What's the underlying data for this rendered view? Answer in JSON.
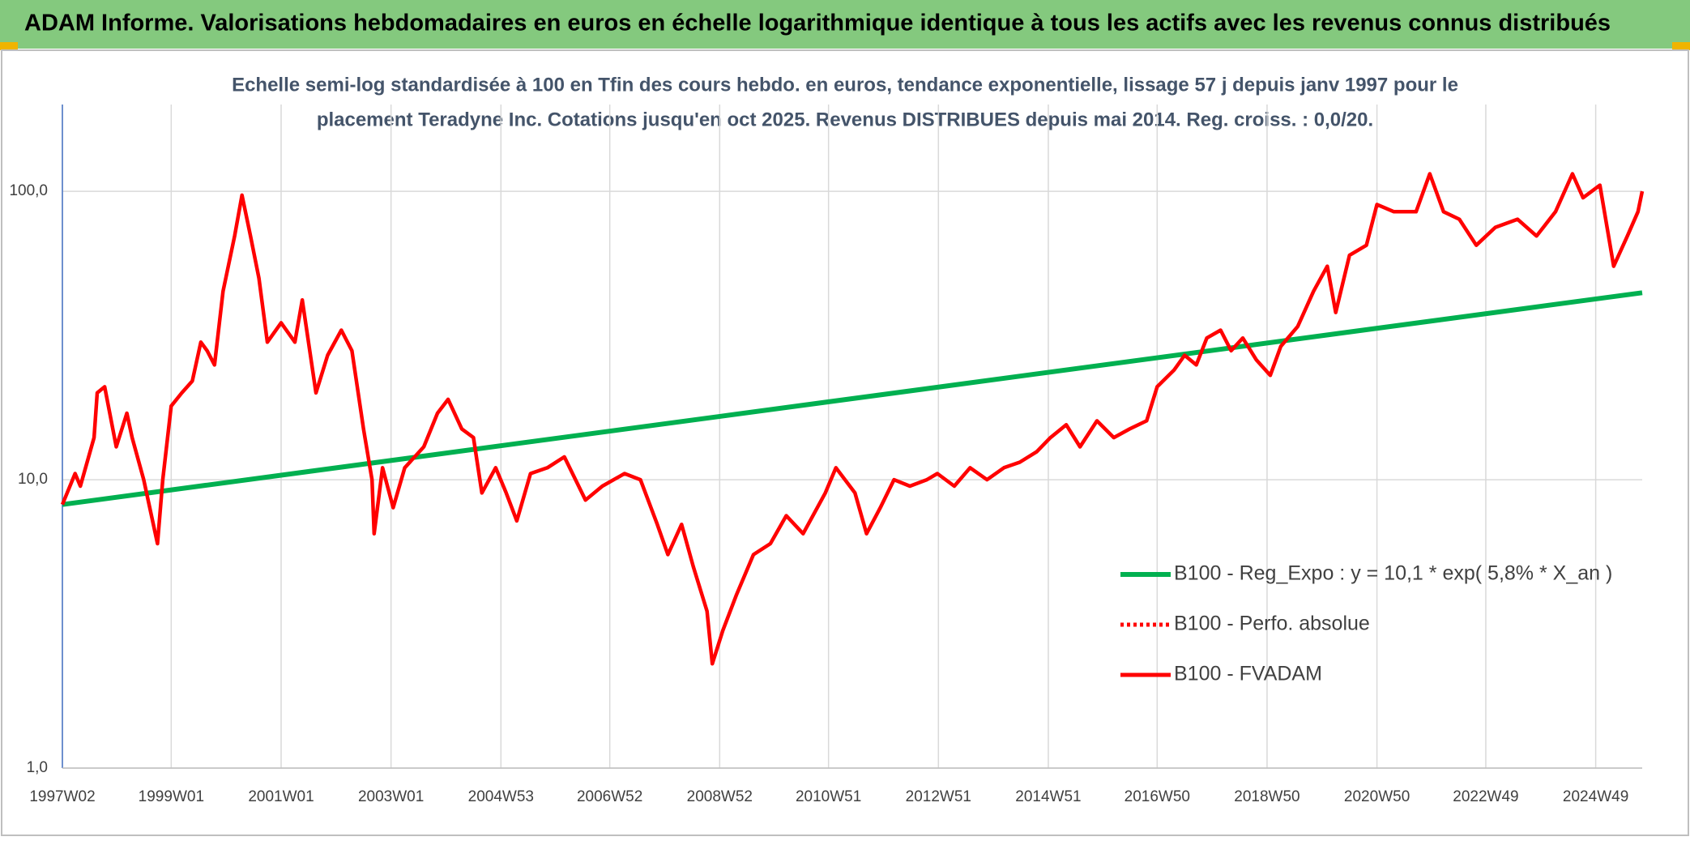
{
  "header": {
    "title": "ADAM Informe. Valorisations hebdomadaires en euros en échelle logarithmique identique à tous les actifs avec les revenus connus distribués"
  },
  "chart_data": {
    "type": "line",
    "title": "Echelle semi-log standardisée à 100 en Tfin des cours hebdo. en euros, tendance exponentielle, lissage 57 j depuis janv 1997 pour le",
    "subtitle": "placement Teradyne Inc. Cotations jusqu'en oct 2025. Revenus DISTRIBUES depuis mai 2014. Reg. croiss. : 0,0/20.",
    "log_scale": true,
    "grid": true,
    "legend": "lower right",
    "ylim": [
      1,
      200
    ],
    "yticks": [
      {
        "value": 1,
        "label": "1,0"
      },
      {
        "value": 10,
        "label": "10,0"
      },
      {
        "value": 100,
        "label": "100,0"
      }
    ],
    "xticks": [
      "1997W02",
      "1999W01",
      "2001W01",
      "2003W01",
      "2004W53",
      "2006W52",
      "2008W52",
      "2010W51",
      "2012W51",
      "2014W51",
      "2016W50",
      "2018W50",
      "2020W50",
      "2022W49",
      "2024W49"
    ],
    "x": [
      "1997W02",
      "1997W14",
      "1997W19",
      "1997W32",
      "1997W35",
      "1997W42",
      "1998W01",
      "1998W11",
      "1998W16",
      "1998W27",
      "1998W40",
      "1998W45",
      "1999W01",
      "1999W11",
      "1999W21",
      "1999W29",
      "1999W35",
      "1999W42",
      "1999W50",
      "2000W09",
      "2000W16",
      "2000W24",
      "2000W32",
      "2000W40",
      "2001W01",
      "2001W14",
      "2001W21",
      "2001W34",
      "2001W45",
      "2002W06",
      "2002W16",
      "2002W27",
      "2002W35",
      "2002W37",
      "2002W45",
      "2003W03",
      "2003W14",
      "2003W32",
      "2003W45",
      "2004W03",
      "2004W16",
      "2004W27",
      "2004W35",
      "2004W48",
      "2005W06",
      "2005W16",
      "2005W29",
      "2005W45",
      "2006W09",
      "2006W29",
      "2006W45",
      "2007W14",
      "2007W29",
      "2007W45",
      "2008W03",
      "2008W16",
      "2008W27",
      "2008W40",
      "2008W45",
      "2009W03",
      "2009W16",
      "2009W32",
      "2009W48",
      "2010W11",
      "2010W27",
      "2010W48",
      "2011W06",
      "2011W24",
      "2011W35",
      "2011W48",
      "2012W09",
      "2012W24",
      "2012W40",
      "2012W50",
      "2013W14",
      "2013W29",
      "2013W45",
      "2014W09",
      "2014W24",
      "2014W40",
      "2015W01",
      "2015W16",
      "2015W29",
      "2015W45",
      "2016W09",
      "2016W24",
      "2016W40",
      "2016W50",
      "2017W14",
      "2017W24",
      "2017W35",
      "2017W45",
      "2018W06",
      "2018W16",
      "2018W27",
      "2018W40",
      "2019W01",
      "2019W11",
      "2019W27",
      "2019W42",
      "2020W03",
      "2020W11",
      "2020W24",
      "2020W40",
      "2020W50",
      "2021W14",
      "2021W35",
      "2021W48",
      "2022W09",
      "2022W24",
      "2022W40",
      "2023W06",
      "2023W27",
      "2023W45",
      "2024W11",
      "2024W27",
      "2024W37",
      "2025W01",
      "2025W14",
      "2025W27",
      "2025W37",
      "2025W41"
    ],
    "series": [
      {
        "name": "B100 - Reg_Expo : y = 10,1 * exp( 5,8% *  X_an )",
        "color": "#00b050",
        "x": [
          "1997W02",
          "2025W41"
        ],
        "values": [
          8.2,
          44.5
        ]
      },
      {
        "name": "B100 - Perfo. absolue",
        "color": "#ff0000",
        "style": "dotted"
      },
      {
        "name": "B100 - FVADAM",
        "color": "#ff0000",
        "values": [
          8.2,
          10.5,
          9.5,
          14,
          20,
          21,
          13,
          17,
          14,
          10,
          6,
          10,
          18,
          20,
          22,
          30,
          28,
          25,
          45,
          70,
          97,
          70,
          50,
          30,
          35,
          30,
          42,
          20,
          27,
          33,
          28,
          15,
          10,
          6.5,
          11,
          8,
          11,
          13,
          17,
          19,
          15,
          14,
          9,
          11,
          9,
          7.2,
          10.5,
          11,
          12,
          8.5,
          9.5,
          10.5,
          10,
          7,
          5.5,
          7,
          5,
          3.5,
          2.3,
          3,
          4,
          5.5,
          6,
          7.5,
          6.5,
          9,
          11,
          9,
          6.5,
          8,
          10,
          9.5,
          10,
          10.5,
          9.5,
          11,
          10,
          11,
          11.5,
          12.5,
          14,
          15.5,
          13,
          16,
          14,
          15,
          16,
          21,
          24,
          27,
          25,
          31,
          33,
          28,
          31,
          26,
          23,
          29,
          34,
          45,
          55,
          38,
          60,
          65,
          90,
          85,
          85,
          115,
          85,
          80,
          65,
          75,
          80,
          70,
          85,
          115,
          95,
          105,
          55,
          70,
          85,
          100
        ]
      }
    ]
  }
}
